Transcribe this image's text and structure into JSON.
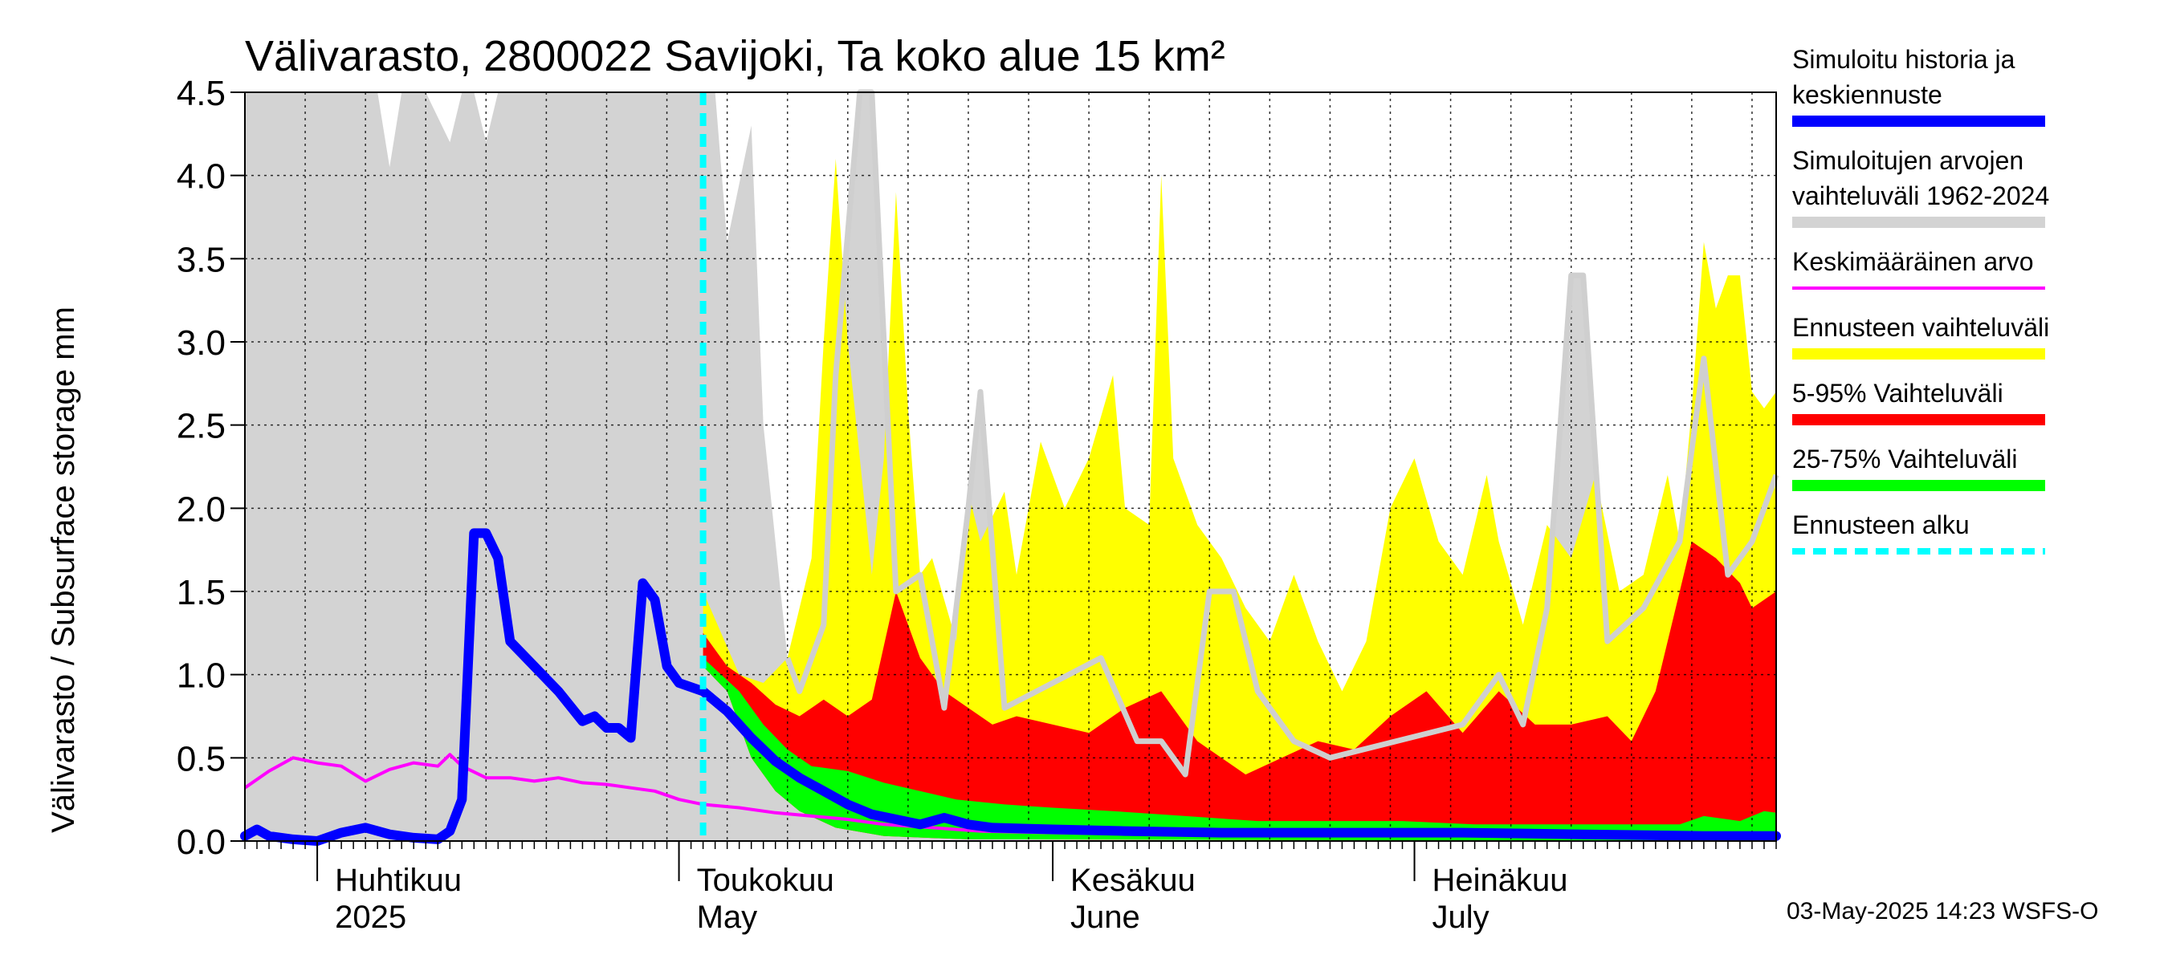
{
  "chart_data": {
    "type": "area",
    "title": "Välivarasto, 2800022 Savijoki, Ta koko alue 15 km²",
    "ylabel": "Välivarasto / Subsurface storage  mm",
    "ylim": [
      0,
      4.5
    ],
    "yticks": [
      "0.0",
      "0.5",
      "1.0",
      "1.5",
      "2.0",
      "2.5",
      "3.0",
      "3.5",
      "4.0",
      "4.5"
    ],
    "x_start": "2025-03-26",
    "x_end": "2025-07-31",
    "forecast_start": "2025-05-03",
    "grid": true,
    "legend_position": "right",
    "months": [
      {
        "fi": "Huhtikuu",
        "en": "2025",
        "date": "2025-04-01"
      },
      {
        "fi": "Toukokuu",
        "en": "May",
        "date": "2025-05-01"
      },
      {
        "fi": "Kesäkuu",
        "en": "June",
        "date": "2025-06-01"
      },
      {
        "fi": "Heinäkuu",
        "en": "July",
        "date": "2025-07-01"
      }
    ],
    "hist_range": {
      "name": "Simuloitujen arvojen vaihteluväli 1962-2024",
      "color": "#d3d3d3",
      "points": [
        [
          "2025-03-26",
          4.5
        ],
        [
          "2025-04-06",
          4.5
        ],
        [
          "2025-04-07",
          4.05
        ],
        [
          "2025-04-08",
          4.5
        ],
        [
          "2025-04-10",
          4.5
        ],
        [
          "2025-04-12",
          4.2
        ],
        [
          "2025-04-13",
          4.5
        ],
        [
          "2025-04-14",
          4.5
        ],
        [
          "2025-04-15",
          4.2
        ],
        [
          "2025-04-16",
          4.5
        ],
        [
          "2025-05-04",
          4.5
        ],
        [
          "2025-05-05",
          3.6
        ],
        [
          "2025-05-07",
          4.3
        ],
        [
          "2025-05-08",
          2.5
        ],
        [
          "2025-05-10",
          1.1
        ],
        [
          "2025-05-11",
          0.9
        ],
        [
          "2025-05-13",
          1.3
        ],
        [
          "2025-05-14",
          2.8
        ],
        [
          "2025-05-16",
          4.5
        ],
        [
          "2025-05-17",
          4.5
        ],
        [
          "2025-05-19",
          1.5
        ],
        [
          "2025-05-21",
          1.6
        ],
        [
          "2025-05-23",
          0.8
        ],
        [
          "2025-05-25",
          2.0
        ],
        [
          "2025-05-26",
          2.7
        ],
        [
          "2025-05-28",
          0.8
        ],
        [
          "2025-06-05",
          1.1
        ],
        [
          "2025-06-08",
          0.6
        ],
        [
          "2025-06-10",
          0.6
        ],
        [
          "2025-06-12",
          0.4
        ],
        [
          "2025-06-14",
          1.5
        ],
        [
          "2025-06-16",
          1.5
        ],
        [
          "2025-06-18",
          0.9
        ],
        [
          "2025-06-21",
          0.6
        ],
        [
          "2025-06-24",
          0.5
        ],
        [
          "2025-07-05",
          0.7
        ],
        [
          "2025-07-08",
          1.0
        ],
        [
          "2025-07-10",
          0.7
        ],
        [
          "2025-07-12",
          1.4
        ],
        [
          "2025-07-14",
          3.4
        ],
        [
          "2025-07-15",
          3.4
        ],
        [
          "2025-07-17",
          1.2
        ],
        [
          "2025-07-20",
          1.4
        ],
        [
          "2025-07-23",
          1.8
        ],
        [
          "2025-07-25",
          2.9
        ],
        [
          "2025-07-27",
          1.6
        ],
        [
          "2025-07-29",
          1.8
        ],
        [
          "2025-07-31",
          2.2
        ]
      ]
    },
    "yellow_upper": {
      "name": "Ennusteen vaihteluväli",
      "color": "#ffff00",
      "points": [
        [
          "2025-05-03",
          1.5
        ],
        [
          "2025-05-06",
          1.0
        ],
        [
          "2025-05-08",
          0.95
        ],
        [
          "2025-05-10",
          1.1
        ],
        [
          "2025-05-12",
          1.7
        ],
        [
          "2025-05-13",
          3.0
        ],
        [
          "2025-05-14",
          4.1
        ],
        [
          "2025-05-15",
          3.0
        ],
        [
          "2025-05-17",
          1.6
        ],
        [
          "2025-05-18",
          2.3
        ],
        [
          "2025-05-19",
          3.9
        ],
        [
          "2025-05-20",
          2.6
        ],
        [
          "2025-05-21",
          1.6
        ],
        [
          "2025-05-22",
          1.7
        ],
        [
          "2025-05-24",
          1.2
        ],
        [
          "2025-05-25",
          2.1
        ],
        [
          "2025-05-26",
          1.8
        ],
        [
          "2025-05-28",
          2.1
        ],
        [
          "2025-05-29",
          1.6
        ],
        [
          "2025-05-31",
          2.4
        ],
        [
          "2025-06-02",
          2.0
        ],
        [
          "2025-06-04",
          2.3
        ],
        [
          "2025-06-06",
          2.8
        ],
        [
          "2025-06-07",
          2.0
        ],
        [
          "2025-06-09",
          1.9
        ],
        [
          "2025-06-10",
          4.0
        ],
        [
          "2025-06-11",
          2.3
        ],
        [
          "2025-06-13",
          1.9
        ],
        [
          "2025-06-15",
          1.7
        ],
        [
          "2025-06-17",
          1.4
        ],
        [
          "2025-06-19",
          1.2
        ],
        [
          "2025-06-21",
          1.6
        ],
        [
          "2025-06-23",
          1.2
        ],
        [
          "2025-06-25",
          0.9
        ],
        [
          "2025-06-27",
          1.2
        ],
        [
          "2025-06-29",
          2.0
        ],
        [
          "2025-07-01",
          2.3
        ],
        [
          "2025-07-03",
          1.8
        ],
        [
          "2025-07-05",
          1.6
        ],
        [
          "2025-07-07",
          2.2
        ],
        [
          "2025-07-08",
          1.8
        ],
        [
          "2025-07-10",
          1.3
        ],
        [
          "2025-07-12",
          1.9
        ],
        [
          "2025-07-14",
          1.7
        ],
        [
          "2025-07-16",
          2.2
        ],
        [
          "2025-07-18",
          1.5
        ],
        [
          "2025-07-20",
          1.6
        ],
        [
          "2025-07-22",
          2.2
        ],
        [
          "2025-07-23",
          1.8
        ],
        [
          "2025-07-24",
          2.6
        ],
        [
          "2025-07-25",
          3.6
        ],
        [
          "2025-07-26",
          3.2
        ],
        [
          "2025-07-27",
          3.4
        ],
        [
          "2025-07-28",
          3.4
        ],
        [
          "2025-07-29",
          2.7
        ],
        [
          "2025-07-30",
          2.6
        ],
        [
          "2025-07-31",
          2.7
        ]
      ]
    },
    "red_upper": {
      "name": "5-95% Vaihteluväli",
      "color": "#ff0000",
      "points": [
        [
          "2025-05-03",
          1.25
        ],
        [
          "2025-05-05",
          1.05
        ],
        [
          "2025-05-07",
          0.95
        ],
        [
          "2025-05-09",
          0.82
        ],
        [
          "2025-05-11",
          0.75
        ],
        [
          "2025-05-13",
          0.85
        ],
        [
          "2025-05-15",
          0.75
        ],
        [
          "2025-05-17",
          0.85
        ],
        [
          "2025-05-19",
          1.5
        ],
        [
          "2025-05-21",
          1.1
        ],
        [
          "2025-05-23",
          0.9
        ],
        [
          "2025-05-25",
          0.8
        ],
        [
          "2025-05-27",
          0.7
        ],
        [
          "2025-05-29",
          0.75
        ],
        [
          "2025-06-01",
          0.7
        ],
        [
          "2025-06-04",
          0.65
        ],
        [
          "2025-06-07",
          0.8
        ],
        [
          "2025-06-10",
          0.9
        ],
        [
          "2025-06-13",
          0.6
        ],
        [
          "2025-06-17",
          0.4
        ],
        [
          "2025-06-20",
          0.5
        ],
        [
          "2025-06-23",
          0.6
        ],
        [
          "2025-06-26",
          0.55
        ],
        [
          "2025-06-29",
          0.75
        ],
        [
          "2025-07-02",
          0.9
        ],
        [
          "2025-07-05",
          0.65
        ],
        [
          "2025-07-08",
          0.9
        ],
        [
          "2025-07-11",
          0.7
        ],
        [
          "2025-07-14",
          0.7
        ],
        [
          "2025-07-17",
          0.75
        ],
        [
          "2025-07-19",
          0.6
        ],
        [
          "2025-07-21",
          0.9
        ],
        [
          "2025-07-23",
          1.5
        ],
        [
          "2025-07-24",
          1.8
        ],
        [
          "2025-07-26",
          1.7
        ],
        [
          "2025-07-28",
          1.55
        ],
        [
          "2025-07-29",
          1.4
        ],
        [
          "2025-07-31",
          1.5
        ]
      ]
    },
    "green_upper": {
      "name": "25-75% Vaihteluväli",
      "color": "#00ff00",
      "points": [
        [
          "2025-05-03",
          1.1
        ],
        [
          "2025-05-06",
          0.9
        ],
        [
          "2025-05-08",
          0.7
        ],
        [
          "2025-05-10",
          0.55
        ],
        [
          "2025-05-12",
          0.45
        ],
        [
          "2025-05-15",
          0.42
        ],
        [
          "2025-05-18",
          0.35
        ],
        [
          "2025-05-21",
          0.3
        ],
        [
          "2025-05-24",
          0.25
        ],
        [
          "2025-05-28",
          0.22
        ],
        [
          "2025-06-01",
          0.2
        ],
        [
          "2025-06-06",
          0.18
        ],
        [
          "2025-06-12",
          0.15
        ],
        [
          "2025-06-18",
          0.12
        ],
        [
          "2025-06-24",
          0.12
        ],
        [
          "2025-06-30",
          0.12
        ],
        [
          "2025-07-06",
          0.1
        ],
        [
          "2025-07-12",
          0.1
        ],
        [
          "2025-07-18",
          0.1
        ],
        [
          "2025-07-23",
          0.1
        ],
        [
          "2025-07-25",
          0.15
        ],
        [
          "2025-07-28",
          0.12
        ],
        [
          "2025-07-30",
          0.18
        ],
        [
          "2025-07-31",
          0.17
        ]
      ]
    },
    "lower_bound": {
      "points": [
        [
          "2025-05-03",
          1.05
        ],
        [
          "2025-05-05",
          0.9
        ],
        [
          "2025-05-07",
          0.5
        ],
        [
          "2025-05-09",
          0.3
        ],
        [
          "2025-05-11",
          0.18
        ],
        [
          "2025-05-14",
          0.08
        ],
        [
          "2025-05-18",
          0.03
        ],
        [
          "2025-05-25",
          0.01
        ],
        [
          "2025-07-31",
          0.0
        ]
      ]
    },
    "simulated": {
      "name": "Simuloitu historia ja keskiennuste",
      "color": "#0000ff",
      "points": [
        [
          "2025-03-26",
          0.03
        ],
        [
          "2025-03-27",
          0.07
        ],
        [
          "2025-03-28",
          0.03
        ],
        [
          "2025-03-30",
          0.01
        ],
        [
          "2025-04-01",
          0.0
        ],
        [
          "2025-04-03",
          0.05
        ],
        [
          "2025-04-05",
          0.08
        ],
        [
          "2025-04-07",
          0.04
        ],
        [
          "2025-04-09",
          0.02
        ],
        [
          "2025-04-11",
          0.01
        ],
        [
          "2025-04-12",
          0.06
        ],
        [
          "2025-04-13",
          0.25
        ],
        [
          "2025-04-14",
          1.85
        ],
        [
          "2025-04-15",
          1.85
        ],
        [
          "2025-04-16",
          1.7
        ],
        [
          "2025-04-17",
          1.2
        ],
        [
          "2025-04-19",
          1.05
        ],
        [
          "2025-04-21",
          0.9
        ],
        [
          "2025-04-23",
          0.72
        ],
        [
          "2025-04-24",
          0.75
        ],
        [
          "2025-04-25",
          0.68
        ],
        [
          "2025-04-26",
          0.68
        ],
        [
          "2025-04-27",
          0.62
        ],
        [
          "2025-04-28",
          1.55
        ],
        [
          "2025-04-29",
          1.45
        ],
        [
          "2025-04-30",
          1.05
        ],
        [
          "2025-05-01",
          0.95
        ],
        [
          "2025-05-03",
          0.9
        ],
        [
          "2025-05-05",
          0.78
        ],
        [
          "2025-05-07",
          0.62
        ],
        [
          "2025-05-09",
          0.48
        ],
        [
          "2025-05-11",
          0.38
        ],
        [
          "2025-05-13",
          0.3
        ],
        [
          "2025-05-15",
          0.22
        ],
        [
          "2025-05-17",
          0.16
        ],
        [
          "2025-05-19",
          0.13
        ],
        [
          "2025-05-21",
          0.1
        ],
        [
          "2025-05-23",
          0.14
        ],
        [
          "2025-05-25",
          0.1
        ],
        [
          "2025-05-27",
          0.08
        ],
        [
          "2025-06-01",
          0.07
        ],
        [
          "2025-06-07",
          0.06
        ],
        [
          "2025-06-15",
          0.05
        ],
        [
          "2025-06-25",
          0.05
        ],
        [
          "2025-07-05",
          0.05
        ],
        [
          "2025-07-15",
          0.04
        ],
        [
          "2025-07-25",
          0.03
        ],
        [
          "2025-07-31",
          0.03
        ]
      ]
    },
    "mean": {
      "name": "Keskimääräinen arvo",
      "color": "#ff00ff",
      "points": [
        [
          "2025-03-26",
          0.32
        ],
        [
          "2025-03-28",
          0.42
        ],
        [
          "2025-03-30",
          0.5
        ],
        [
          "2025-04-01",
          0.47
        ],
        [
          "2025-04-03",
          0.45
        ],
        [
          "2025-04-05",
          0.36
        ],
        [
          "2025-04-07",
          0.43
        ],
        [
          "2025-04-09",
          0.47
        ],
        [
          "2025-04-11",
          0.45
        ],
        [
          "2025-04-12",
          0.52
        ],
        [
          "2025-04-13",
          0.45
        ],
        [
          "2025-04-15",
          0.38
        ],
        [
          "2025-04-17",
          0.38
        ],
        [
          "2025-04-19",
          0.36
        ],
        [
          "2025-04-21",
          0.38
        ],
        [
          "2025-04-23",
          0.35
        ],
        [
          "2025-04-25",
          0.34
        ],
        [
          "2025-04-27",
          0.32
        ],
        [
          "2025-04-29",
          0.3
        ],
        [
          "2025-05-01",
          0.25
        ],
        [
          "2025-05-03",
          0.22
        ],
        [
          "2025-05-06",
          0.2
        ],
        [
          "2025-05-09",
          0.17
        ],
        [
          "2025-05-12",
          0.15
        ],
        [
          "2025-05-15",
          0.13
        ],
        [
          "2025-05-18",
          0.1
        ],
        [
          "2025-05-22",
          0.08
        ],
        [
          "2025-05-26",
          0.06
        ],
        [
          "2025-06-01",
          0.05
        ],
        [
          "2025-06-10",
          0.04
        ],
        [
          "2025-06-20",
          0.04
        ],
        [
          "2025-07-01",
          0.04
        ],
        [
          "2025-07-10",
          0.04
        ],
        [
          "2025-07-20",
          0.03
        ],
        [
          "2025-07-31",
          0.03
        ]
      ]
    },
    "forecast_line_label": "Ennusteen alku",
    "legend": [
      {
        "lines": [
          "Simuloitu historia ja",
          "keskiennuste"
        ],
        "color": "#0000ff",
        "style": "solid"
      },
      {
        "lines": [
          "Simuloitujen arvojen",
          "vaihteluväli 1962-2024"
        ],
        "color": "#d3d3d3",
        "style": "solid"
      },
      {
        "lines": [
          "Keskimääräinen arvo"
        ],
        "color": "#ff00ff",
        "style": "thin"
      },
      {
        "lines": [
          "Ennusteen vaihteluväli"
        ],
        "color": "#ffff00",
        "style": "solid"
      },
      {
        "lines": [
          "5-95% Vaihteluväli"
        ],
        "color": "#ff0000",
        "style": "solid"
      },
      {
        "lines": [
          "25-75% Vaihteluväli"
        ],
        "color": "#00ff00",
        "style": "solid"
      },
      {
        "lines": [
          "Ennusteen alku"
        ],
        "color": "#00ffff",
        "style": "dashed"
      }
    ],
    "timestamp": "03-May-2025 14:23 WSFS-O"
  }
}
